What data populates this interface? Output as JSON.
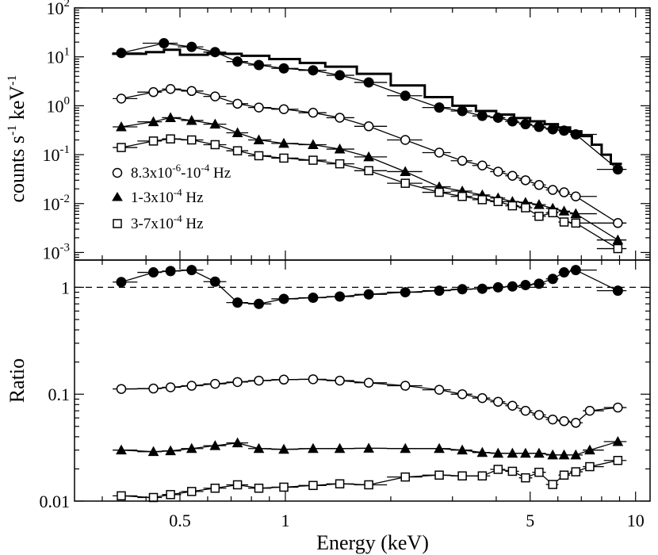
{
  "chart_data": [
    {
      "type": "line",
      "panel": "top",
      "title": "",
      "xlabel": "",
      "ylabel": {
        "text": "counts s",
        "sup1": "-1",
        "mid": " keV",
        "sup2": "-1"
      },
      "xscale": "log",
      "yscale": "log",
      "xlim": [
        0.25,
        11
      ],
      "ylim": [
        0.0007,
        100
      ],
      "y_ticks": [
        {
          "value": 100,
          "base": "10",
          "exp": "2"
        },
        {
          "value": 10,
          "base": "10",
          "exp": "1"
        },
        {
          "value": 1,
          "base": "10",
          "exp": "0"
        },
        {
          "value": 0.1,
          "base": "10",
          "exp": "-1"
        },
        {
          "value": 0.01,
          "base": "10",
          "exp": "-2"
        },
        {
          "value": 0.001,
          "base": "10",
          "exp": "-3"
        }
      ],
      "legend": {
        "placement": "lower-left",
        "entries": [
          {
            "marker": "circle-open",
            "text": "8.3x10",
            "sup1": "-6",
            "mid": "-10",
            "sup2": "-4",
            "tail": " Hz"
          },
          {
            "marker": "triangle-filled",
            "text": "1-3x10",
            "sup1": "-4",
            "mid": "",
            "sup2": "",
            "tail": " Hz"
          },
          {
            "marker": "square-open",
            "text": "3-7x10",
            "sup1": "-4",
            "mid": "",
            "sup2": "",
            "tail": " Hz"
          }
        ]
      },
      "series": [
        {
          "name": "total spectrum data",
          "marker": "circle-filled",
          "x": [
            0.34,
            0.45,
            0.54,
            0.63,
            0.73,
            0.84,
            0.99,
            1.2,
            1.43,
            1.73,
            2.2,
            2.75,
            3.2,
            3.65,
            4.05,
            4.45,
            4.85,
            5.3,
            5.8,
            6.25,
            6.75,
            8.9
          ],
          "y": [
            12,
            19,
            16,
            12.5,
            8,
            6.8,
            5.8,
            5.3,
            4.2,
            3.0,
            1.6,
            0.92,
            0.78,
            0.62,
            0.57,
            0.48,
            0.42,
            0.37,
            0.33,
            0.31,
            0.26,
            0.05
          ]
        },
        {
          "name": "model",
          "marker": "none",
          "step": true,
          "x": [
            0.32,
            0.4,
            0.45,
            0.5,
            0.6,
            0.75,
            0.9,
            1.1,
            1.3,
            1.6,
            2.0,
            2.5,
            3.0,
            3.5,
            4.0,
            4.5,
            5.0,
            5.5,
            6.0,
            6.5,
            7.0,
            7.5,
            8.0,
            8.5
          ],
          "y": [
            11.5,
            12.5,
            14,
            11,
            11.5,
            10.5,
            9,
            7.5,
            6.3,
            4.5,
            2.6,
            1.5,
            1.0,
            0.78,
            0.66,
            0.56,
            0.48,
            0.42,
            0.36,
            0.3,
            0.24,
            0.16,
            0.1,
            0.065
          ]
        },
        {
          "name": "8.3x10^-6-10^-4 Hz",
          "marker": "circle-open",
          "x": [
            0.34,
            0.42,
            0.47,
            0.54,
            0.63,
            0.73,
            0.84,
            0.99,
            1.2,
            1.43,
            1.73,
            2.2,
            2.75,
            3.2,
            3.65,
            4.05,
            4.45,
            4.85,
            5.3,
            5.8,
            6.25,
            6.75,
            8.9
          ],
          "y": [
            1.4,
            1.9,
            2.2,
            2.0,
            1.55,
            1.1,
            0.92,
            0.85,
            0.72,
            0.57,
            0.38,
            0.2,
            0.11,
            0.075,
            0.06,
            0.045,
            0.037,
            0.03,
            0.024,
            0.019,
            0.017,
            0.014,
            0.004
          ]
        },
        {
          "name": "1-3x10^-4 Hz",
          "marker": "triangle-filled",
          "x": [
            0.34,
            0.42,
            0.47,
            0.54,
            0.63,
            0.73,
            0.84,
            0.99,
            1.2,
            1.43,
            1.73,
            2.2,
            2.75,
            3.2,
            3.65,
            4.05,
            4.45,
            4.85,
            5.3,
            5.8,
            6.25,
            6.75,
            8.9
          ],
          "y": [
            0.37,
            0.47,
            0.57,
            0.5,
            0.42,
            0.28,
            0.2,
            0.17,
            0.16,
            0.13,
            0.09,
            0.045,
            0.022,
            0.018,
            0.015,
            0.013,
            0.011,
            0.0105,
            0.0095,
            0.008,
            0.007,
            0.0062,
            0.0018
          ]
        },
        {
          "name": "3-7x10^-4 Hz",
          "marker": "square-open",
          "x": [
            0.34,
            0.42,
            0.47,
            0.54,
            0.63,
            0.73,
            0.84,
            0.99,
            1.2,
            1.43,
            1.73,
            2.2,
            2.75,
            3.2,
            3.65,
            4.05,
            4.45,
            4.85,
            5.3,
            5.8,
            6.25,
            6.75,
            8.9
          ],
          "y": [
            0.14,
            0.19,
            0.21,
            0.2,
            0.16,
            0.12,
            0.095,
            0.085,
            0.077,
            0.065,
            0.047,
            0.026,
            0.017,
            0.014,
            0.012,
            0.011,
            0.009,
            0.0082,
            0.0055,
            0.0065,
            0.0042,
            0.004,
            0.0012
          ]
        }
      ]
    },
    {
      "type": "line",
      "panel": "bottom",
      "title": "",
      "xlabel": "Energy (keV)",
      "ylabel": "Ratio",
      "xscale": "log",
      "yscale": "log",
      "xlim": [
        0.25,
        11
      ],
      "ylim": [
        0.01,
        1.8
      ],
      "x_ticks": [
        {
          "value": 0.5,
          "label": "0.5"
        },
        {
          "value": 1,
          "label": "1"
        },
        {
          "value": 5,
          "label": "5"
        },
        {
          "value": 10,
          "label": "10"
        }
      ],
      "y_ticks": [
        {
          "value": 1,
          "label": "1"
        },
        {
          "value": 0.1,
          "label": "0.1"
        },
        {
          "value": 0.01,
          "label": "0.01"
        }
      ],
      "reference_line": {
        "y": 1,
        "style": "dashed"
      },
      "series": [
        {
          "name": "total ratio",
          "marker": "circle-filled",
          "x": [
            0.34,
            0.42,
            0.47,
            0.54,
            0.63,
            0.73,
            0.84,
            0.99,
            1.2,
            1.43,
            1.73,
            2.2,
            2.75,
            3.2,
            3.65,
            4.05,
            4.45,
            4.85,
            5.3,
            5.8,
            6.25,
            6.75,
            8.9
          ],
          "y": [
            1.12,
            1.38,
            1.42,
            1.45,
            1.13,
            0.72,
            0.7,
            0.78,
            0.8,
            0.82,
            0.86,
            0.9,
            0.93,
            0.96,
            0.97,
            1.0,
            1.02,
            1.05,
            1.08,
            1.2,
            1.38,
            1.45,
            0.93
          ]
        },
        {
          "name": "8.3x10^-6-10^-4 Hz",
          "marker": "circle-open",
          "x": [
            0.34,
            0.42,
            0.47,
            0.54,
            0.63,
            0.73,
            0.84,
            0.99,
            1.2,
            1.43,
            1.73,
            2.2,
            2.75,
            3.2,
            3.65,
            4.05,
            4.45,
            4.85,
            5.3,
            5.8,
            6.25,
            6.75,
            7.4,
            8.9
          ],
          "y": [
            0.112,
            0.113,
            0.116,
            0.12,
            0.125,
            0.13,
            0.134,
            0.137,
            0.138,
            0.134,
            0.128,
            0.12,
            0.11,
            0.1,
            0.092,
            0.085,
            0.078,
            0.07,
            0.064,
            0.058,
            0.056,
            0.054,
            0.07,
            0.075
          ]
        },
        {
          "name": "1-3x10^-4 Hz",
          "marker": "triangle-filled",
          "x": [
            0.34,
            0.42,
            0.47,
            0.54,
            0.63,
            0.73,
            0.84,
            0.99,
            1.2,
            1.43,
            1.73,
            2.2,
            2.75,
            3.2,
            3.65,
            4.05,
            4.45,
            4.85,
            5.3,
            5.8,
            6.25,
            6.75,
            7.4,
            8.9
          ],
          "y": [
            0.03,
            0.029,
            0.0295,
            0.031,
            0.033,
            0.035,
            0.031,
            0.0305,
            0.031,
            0.031,
            0.0312,
            0.031,
            0.031,
            0.03,
            0.0285,
            0.028,
            0.028,
            0.028,
            0.028,
            0.027,
            0.027,
            0.027,
            0.03,
            0.036
          ]
        },
        {
          "name": "3-7x10^-4 Hz",
          "marker": "square-open",
          "x": [
            0.34,
            0.42,
            0.47,
            0.54,
            0.63,
            0.73,
            0.84,
            0.99,
            1.2,
            1.43,
            1.73,
            2.2,
            2.75,
            3.2,
            3.65,
            4.05,
            4.45,
            4.85,
            5.3,
            5.8,
            6.25,
            6.75,
            7.4,
            8.9
          ],
          "y": [
            0.0112,
            0.0108,
            0.0115,
            0.0123,
            0.0132,
            0.0142,
            0.0132,
            0.0135,
            0.014,
            0.0145,
            0.0142,
            0.0168,
            0.0175,
            0.0172,
            0.0172,
            0.0198,
            0.019,
            0.0165,
            0.0186,
            0.0143,
            0.0175,
            0.0188,
            0.021,
            0.024
          ]
        }
      ]
    }
  ]
}
